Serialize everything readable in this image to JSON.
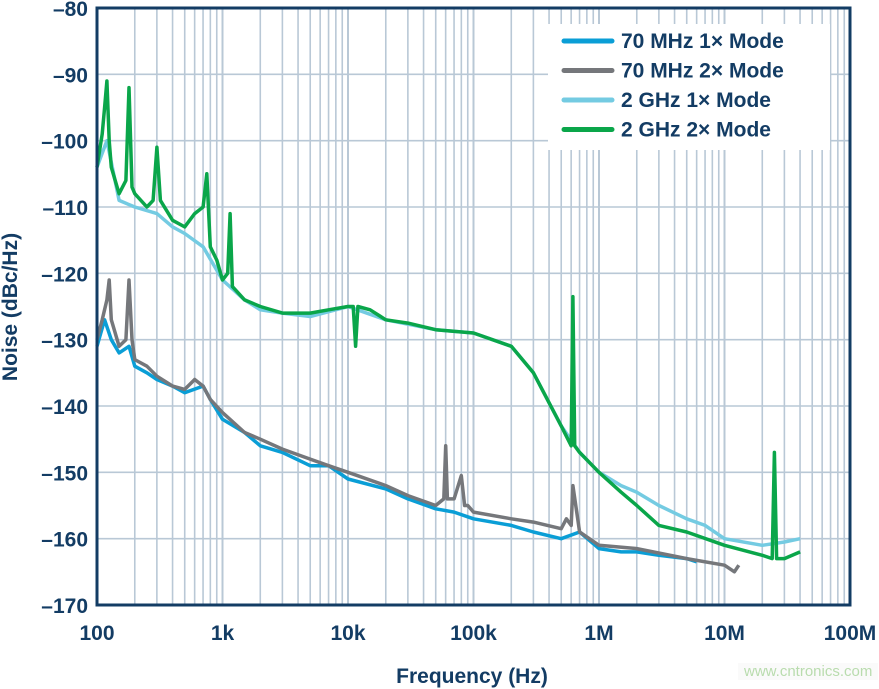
{
  "chart_data": {
    "type": "line",
    "title": "",
    "xlabel": "Frequency (Hz)",
    "ylabel": "Noise (dBc/Hz)",
    "xscale": "log",
    "xlim": [
      100,
      100000000
    ],
    "ylim": [
      -170,
      -80
    ],
    "grid": true,
    "legend_position": "top-right",
    "x_tick_labels": [
      "100",
      "1k",
      "10k",
      "100k",
      "1M",
      "10M",
      "100M"
    ],
    "x_tick_values": [
      100,
      1000,
      10000,
      100000,
      1000000,
      10000000,
      100000000
    ],
    "y_tick_labels": [
      "–80",
      "–90",
      "–100",
      "–110",
      "–120",
      "–130",
      "–140",
      "–150",
      "–160",
      "–170"
    ],
    "y_tick_values": [
      -80,
      -90,
      -100,
      -110,
      -120,
      -130,
      -140,
      -150,
      -160,
      -170
    ],
    "series": [
      {
        "name": "70 MHz 1× Mode",
        "color": "#0a9ed6",
        "x": [
          100,
          115,
          130,
          150,
          180,
          200,
          250,
          300,
          400,
          500,
          700,
          800,
          1000,
          1500,
          2000,
          3000,
          5000,
          7000,
          10000,
          20000,
          30000,
          50000,
          70000,
          100000,
          200000,
          300000,
          500000,
          700000,
          1000000,
          1500000,
          2000000,
          3000000,
          5000000,
          6000000
        ],
        "y": [
          -131,
          -127,
          -130,
          -132,
          -131,
          -134,
          -135,
          -136,
          -137,
          -138,
          -137,
          -139,
          -142,
          -144,
          -146,
          -147,
          -149,
          -149,
          -151,
          -152.5,
          -154,
          -155.5,
          -156,
          -157,
          -158,
          -159,
          -160,
          -159,
          -161.5,
          -162,
          -162,
          -162.5,
          -163,
          -163.5
        ]
      },
      {
        "name": "70 MHz 2× Mode",
        "color": "#75777b",
        "x": [
          100,
          110,
          120,
          125,
          130,
          150,
          170,
          180,
          190,
          200,
          250,
          300,
          400,
          500,
          600,
          700,
          800,
          1000,
          1500,
          2000,
          3000,
          5000,
          7000,
          10000,
          20000,
          30000,
          50000,
          58000,
          60000,
          62000,
          70000,
          80000,
          85000,
          90000,
          100000,
          200000,
          300000,
          500000,
          550000,
          600000,
          620000,
          700000,
          1000000,
          2000000,
          5000000,
          10000000,
          12000000,
          13000000
        ],
        "y": [
          -130,
          -127,
          -124,
          -121,
          -127,
          -131,
          -130,
          -121,
          -130,
          -133,
          -134,
          -135.5,
          -137,
          -137.5,
          -136,
          -137,
          -139,
          -141,
          -144,
          -145,
          -146.5,
          -148,
          -149,
          -150,
          -152,
          -153.5,
          -155,
          -154,
          -146,
          -154,
          -154,
          -150.5,
          -155,
          -155,
          -156,
          -157,
          -157.5,
          -158.5,
          -157,
          -158,
          -152,
          -159,
          -161,
          -161.5,
          -163,
          -164,
          -165,
          -164
        ]
      },
      {
        "name": "2 GHz 1× Mode",
        "color": "#74cbe2",
        "x": [
          100,
          120,
          150,
          200,
          300,
          400,
          500,
          700,
          1000,
          1500,
          2000,
          3000,
          5000,
          10000,
          20000,
          50000,
          100000,
          200000,
          300000,
          500000,
          700000,
          1000000,
          1500000,
          2000000,
          3000000,
          5000000,
          7000000,
          10000000,
          20000000,
          30000000,
          40000000
        ],
        "y": [
          -104,
          -100,
          -109,
          -110,
          -111,
          -113,
          -114,
          -116,
          -121,
          -124,
          -125.5,
          -126,
          -126.5,
          -125,
          -127,
          -128.5,
          -129,
          -131,
          -135,
          -143,
          -147,
          -150,
          -152,
          -153,
          -155,
          -157,
          -158,
          -160,
          -161,
          -160.5,
          -160
        ]
      },
      {
        "name": "2 GHz 2× Mode",
        "color": "#0aa64a",
        "x": [
          100,
          110,
          115,
          120,
          125,
          130,
          150,
          170,
          180,
          190,
          200,
          250,
          280,
          300,
          320,
          400,
          500,
          600,
          700,
          750,
          800,
          900,
          1000,
          1100,
          1150,
          1200,
          1500,
          2000,
          3000,
          5000,
          7000,
          10000,
          11000,
          11500,
          12000,
          15000,
          20000,
          30000,
          50000,
          100000,
          200000,
          300000,
          500000,
          600000,
          620000,
          640000,
          700000,
          1000000,
          1500000,
          2000000,
          3000000,
          5000000,
          10000000,
          20000000,
          24000000,
          25000000,
          26000000,
          30000000,
          40000000
        ],
        "y": [
          -104,
          -99,
          -95,
          -91,
          -100,
          -104,
          -108,
          -106,
          -92,
          -107,
          -108,
          -110,
          -109,
          -101,
          -109,
          -112,
          -113,
          -111,
          -110,
          -105,
          -116,
          -118,
          -121,
          -120,
          -111,
          -122,
          -124,
          -125,
          -126,
          -126,
          -125.5,
          -125,
          -125,
          -131,
          -125,
          -125.5,
          -127,
          -127.5,
          -128.5,
          -129,
          -131,
          -135,
          -143,
          -146,
          -123.5,
          -146,
          -147,
          -150,
          -153,
          -155,
          -158,
          -159,
          -161,
          -162.5,
          -163,
          -147,
          -163,
          -163,
          -162
        ]
      }
    ]
  },
  "watermark": "www.cntronics.com"
}
